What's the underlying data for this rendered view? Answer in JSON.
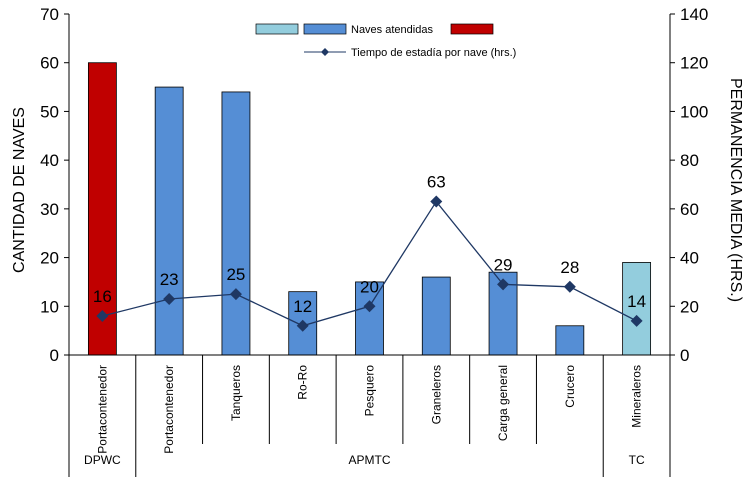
{
  "chart_data": {
    "type": "bar",
    "categories": [
      "Portacontenedor",
      "Portacontenedor",
      "Tanqueros",
      "Ro-Ro",
      "Pesquero",
      "Graneleros",
      "Carga general",
      "Crucero",
      "Mineraleros"
    ],
    "groups": [
      {
        "label": "DPWC",
        "span": 1
      },
      {
        "label": "APMTC",
        "span": 7
      },
      {
        "label": "TC",
        "span": 1
      }
    ],
    "series": [
      {
        "name": "Naves atendidas",
        "kind": "bar",
        "axis": "left",
        "values": [
          60,
          55,
          54,
          13,
          15,
          16,
          17,
          6,
          19
        ],
        "colors": [
          "#c00000",
          "#558ed5",
          "#558ed5",
          "#558ed5",
          "#558ed5",
          "#558ed5",
          "#558ed5",
          "#558ed5",
          "#93cddd"
        ]
      },
      {
        "name": "Tiempo de estadía por nave (hrs.)",
        "kind": "line",
        "axis": "right",
        "values": [
          16,
          23,
          25,
          12,
          20,
          63,
          29,
          28,
          14
        ],
        "labels": [
          "16",
          "23",
          "25",
          "12",
          "20",
          "63",
          "29",
          "28",
          "14"
        ],
        "color": "#1f3864"
      }
    ],
    "legend_swatches": [
      "#93cddd",
      "#558ed5",
      "#c00000"
    ],
    "ylabel": "CANTIDAD DE NAVES",
    "y2label": "PERMANENCIA  MEDIA  (HRS.)",
    "ylim": [
      0,
      70
    ],
    "y2lim": [
      0,
      140
    ],
    "yticks": [
      "0",
      "10",
      "20",
      "30",
      "40",
      "50",
      "60",
      "70"
    ],
    "y2ticks": [
      "0",
      "20",
      "40",
      "60",
      "80",
      "100",
      "120",
      "140"
    ],
    "legend_position": "top-center",
    "grid": false
  }
}
